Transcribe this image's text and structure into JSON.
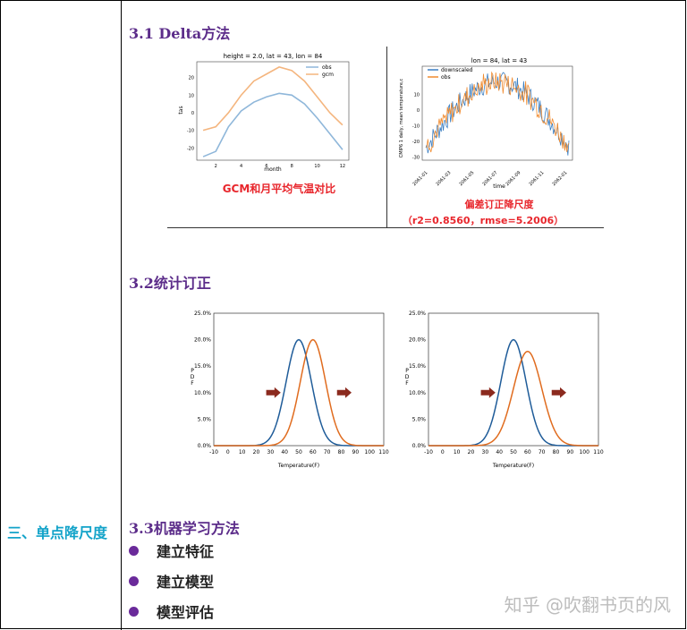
{
  "left_label": "三、单点降尺度",
  "sections": {
    "s31": "3.1 Delta方法",
    "s32": "3.2统计订正",
    "s33": "3.3机器学习方法"
  },
  "bullets": [
    "建立特征",
    "建立模型",
    "模型评估"
  ],
  "fig1": {
    "title": "height = 2.0, lat = 43, lon = 84",
    "legend": [
      "obs",
      "gcm"
    ],
    "xlabel": "month",
    "ylabel": "tas",
    "caption": "GCM和月平均气温对比"
  },
  "fig2": {
    "title": "lon = 84, lat = 43",
    "legend": [
      "downscaled",
      "obs"
    ],
    "xlabel": "time",
    "ylabel": "CMIP6 1 daily, mean temperature,c",
    "caption": "偏差订正降尺度",
    "metrics": "（r2=0.8560，rmse=5.2006）"
  },
  "pdf_axes": {
    "ylabel": "PDF",
    "xlabel": "Temperature(F)",
    "yticks": [
      "25.0%",
      "20.0%",
      "15.0%",
      "10.0%",
      "5.0%",
      "0.0%"
    ],
    "xticks": [
      "-10",
      "0",
      "10",
      "20",
      "30",
      "40",
      "50",
      "60",
      "70",
      "80",
      "90",
      "100",
      "110"
    ]
  },
  "watermark": "知乎 @吹翻书页的风",
  "chart_data": [
    {
      "type": "line",
      "title": "height = 2.0, lat = 43, lon = 84",
      "xlabel": "month",
      "ylabel": "tas",
      "x": [
        1,
        2,
        3,
        4,
        5,
        6,
        7,
        8,
        9,
        10,
        11,
        12
      ],
      "series": [
        {
          "name": "obs",
          "values": [
            -25,
            -22,
            -8,
            1,
            6,
            9,
            11,
            10,
            5,
            -3,
            -12,
            -21
          ]
        },
        {
          "name": "gcm",
          "values": [
            -10,
            -8,
            0,
            10,
            18,
            22,
            26,
            24,
            18,
            9,
            0,
            -7
          ]
        }
      ],
      "xlim": [
        0.5,
        12.5
      ],
      "ylim": [
        -27,
        29
      ],
      "legend": "top-right"
    },
    {
      "type": "line",
      "title": "lon = 84, lat = 43",
      "xlabel": "time",
      "ylabel": "CMIP6 1 daily, mean temperature,c",
      "x_tick_labels": [
        "2061-01",
        "2061-03",
        "2061-05",
        "2061-07",
        "2061-09",
        "2061-11",
        "2062-01"
      ],
      "series": [
        {
          "name": "downscaled",
          "values": []
        },
        {
          "name": "obs",
          "values": []
        }
      ],
      "ylim": [
        -32,
        28
      ],
      "legend": "top-left"
    },
    {
      "type": "line",
      "ylabel": "PDF",
      "xlabel": "Temperature(F)",
      "xlim": [
        -10,
        110
      ],
      "ylim": [
        0,
        25
      ],
      "series": [
        {
          "mean": 50,
          "sd": 20,
          "peak_percent": 20.0,
          "color": "#1f5c99"
        },
        {
          "mean": 60,
          "sd": 20,
          "peak_percent": 20.0,
          "color": "#e06c1f"
        }
      ]
    },
    {
      "type": "line",
      "ylabel": "PDF",
      "xlabel": "Temperature(F)",
      "xlim": [
        -10,
        110
      ],
      "ylim": [
        0,
        25
      ],
      "series": [
        {
          "mean": 50,
          "sd": 20,
          "peak_percent": 20.0,
          "color": "#1f5c99"
        },
        {
          "mean": 60,
          "sd": 22.5,
          "peak_percent": 17.8,
          "color": "#e06c1f"
        }
      ]
    }
  ]
}
